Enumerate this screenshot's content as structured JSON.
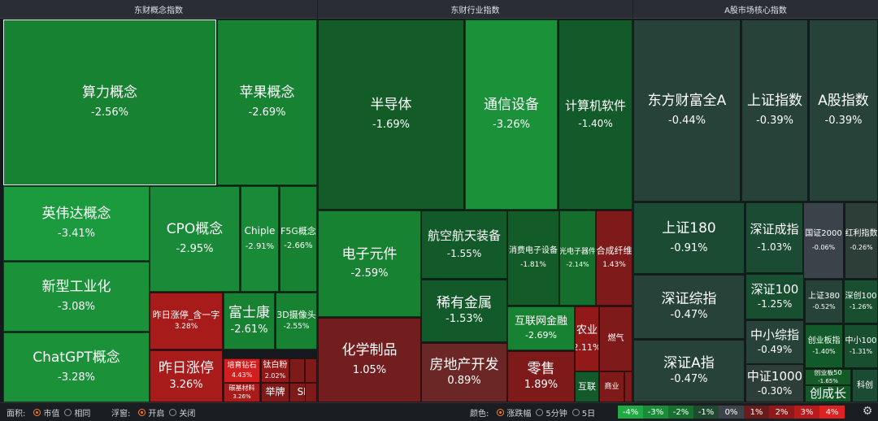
{
  "panels": [
    {
      "title": "东财概念指数",
      "id": "p1"
    },
    {
      "title": "东财行业指数",
      "id": "p2"
    },
    {
      "title": "A股市场核心指数",
      "id": "p3"
    }
  ],
  "chart_data": {
    "type": "heatmap",
    "subtype": "treemap",
    "groups": [
      {
        "title": "东财概念指数",
        "items": [
          {
            "name": "算力概念",
            "change": "-2.56%",
            "value": -2.56
          },
          {
            "name": "苹果概念",
            "change": "-2.69%",
            "value": -2.69
          },
          {
            "name": "英伟达概念",
            "change": "-3.41%",
            "value": -3.41
          },
          {
            "name": "新型工业化",
            "change": "-3.08%",
            "value": -3.08
          },
          {
            "name": "ChatGPT概念",
            "change": "-3.28%",
            "value": -3.28
          },
          {
            "name": "CPO概念",
            "change": "-2.95%",
            "value": -2.95
          },
          {
            "name": "Chiple",
            "change": "-2.91%",
            "value": -2.91
          },
          {
            "name": "F5G概念",
            "change": "-2.66%",
            "value": -2.66
          },
          {
            "name": "昨日涨停_含一字",
            "change": "3.28%",
            "value": 3.28
          },
          {
            "name": "昨日涨停",
            "change": "3.26%",
            "value": 3.26
          },
          {
            "name": "富士康",
            "change": "-2.61%",
            "value": -2.61
          },
          {
            "name": "3D摄像头",
            "change": "-2.55%",
            "value": -2.55
          },
          {
            "name": "培育钻石",
            "change": "4.43%",
            "value": 4.43
          },
          {
            "name": "钛白粉",
            "change": "2.02%",
            "value": 2.02
          },
          {
            "name": "碳基材料",
            "change": "3.26%",
            "value": 3.26
          },
          {
            "name": "举牌",
            "change": "",
            "value": 1.5
          },
          {
            "name": "SP",
            "change": "",
            "value": 1.5
          },
          {
            "name": "",
            "change": "",
            "value": 1.6
          },
          {
            "name": "",
            "change": "",
            "value": 1.8
          },
          {
            "name": "",
            "change": "",
            "value": 1.8
          }
        ]
      },
      {
        "title": "东财行业指数",
        "items": [
          {
            "name": "半导体",
            "change": "-1.69%",
            "value": -1.69
          },
          {
            "name": "通信设备",
            "change": "-3.26%",
            "value": -3.26
          },
          {
            "name": "计算机软件",
            "change": "-1.40%",
            "value": -1.4
          },
          {
            "name": "电子元件",
            "change": "-2.59%",
            "value": -2.59
          },
          {
            "name": "航空航天装备",
            "change": "-1.55%",
            "value": -1.55
          },
          {
            "name": "消费电子设备",
            "change": "-1.81%",
            "value": -1.81
          },
          {
            "name": "光电子器件",
            "change": "-2.14%",
            "value": -2.14
          },
          {
            "name": "合成纤维",
            "change": "1.43%",
            "value": 1.43
          },
          {
            "name": "稀有金属",
            "change": "-1.53%",
            "value": -1.53
          },
          {
            "name": "化学制品",
            "change": "1.05%",
            "value": 1.05
          },
          {
            "name": "互联网金融",
            "change": "-2.69%",
            "value": -2.69
          },
          {
            "name": "农业",
            "change": "2.11%",
            "value": 2.11
          },
          {
            "name": "燃气",
            "change": "",
            "value": 1.6
          },
          {
            "name": "房地产开发",
            "change": "0.89%",
            "value": 0.89
          },
          {
            "name": "零售",
            "change": "1.89%",
            "value": 1.89
          },
          {
            "name": "互联",
            "change": "",
            "value": -1.5
          },
          {
            "name": "商业",
            "change": "",
            "value": 1.6
          },
          {
            "name": "",
            "change": "",
            "value": 1.8
          }
        ]
      },
      {
        "title": "A股市场核心指数",
        "items": [
          {
            "name": "东方财富全A",
            "change": "-0.44%",
            "value": -0.44
          },
          {
            "name": "上证指数",
            "change": "-0.39%",
            "value": -0.39
          },
          {
            "name": "A股指数",
            "change": "-0.39%",
            "value": -0.39
          },
          {
            "name": "上证180",
            "change": "-0.91%",
            "value": -0.91
          },
          {
            "name": "深证成指",
            "change": "-1.03%",
            "value": -1.03
          },
          {
            "name": "国证2000",
            "change": "-0.06%",
            "value": -0.06
          },
          {
            "name": "红利指数",
            "change": "-0.26%",
            "value": -0.26
          },
          {
            "name": "深证综指",
            "change": "-0.47%",
            "value": -0.47
          },
          {
            "name": "深证100",
            "change": "-1.25%",
            "value": -1.25
          },
          {
            "name": "上证380",
            "change": "-0.52%",
            "value": -0.52
          },
          {
            "name": "深创100",
            "change": "-1.26%",
            "value": -1.26
          },
          {
            "name": "中小综指",
            "change": "-0.49%",
            "value": -0.49
          },
          {
            "name": "创业板指",
            "change": "-1.40%",
            "value": -1.4
          },
          {
            "name": "中小100",
            "change": "-1.31%",
            "value": -1.31
          },
          {
            "name": "深证A指",
            "change": "-0.47%",
            "value": -0.47
          },
          {
            "name": "中证1000",
            "change": "-0.30%",
            "value": -0.3
          },
          {
            "name": "创业板50",
            "change": "-1.65%",
            "value": -1.65
          },
          {
            "name": "创成长",
            "change": "",
            "value": -1.5
          },
          {
            "name": "科创",
            "change": "",
            "value": -1.0
          }
        ]
      }
    ]
  },
  "footer": {
    "area_label": "面积:",
    "area_options": [
      "市值",
      "相同"
    ],
    "float_label": "浮窗:",
    "float_options": [
      "开启",
      "关闭"
    ],
    "color_label": "颜色:",
    "color_options": [
      "涨跌幅",
      "5分钟",
      "5日"
    ],
    "scale": [
      {
        "label": "-4%",
        "color": "#1faa42"
      },
      {
        "label": "-3%",
        "color": "#1a8c38"
      },
      {
        "label": "-2%",
        "color": "#17702f"
      },
      {
        "label": "-1%",
        "color": "#1f4a30"
      },
      {
        "label": "0%",
        "color": "#3d434b"
      },
      {
        "label": "1%",
        "color": "#6a1c1c"
      },
      {
        "label": "2%",
        "color": "#901a1a"
      },
      {
        "label": "3%",
        "color": "#b81b1b"
      },
      {
        "label": "4%",
        "color": "#de2222"
      }
    ],
    "settings_icon": "gear-icon"
  }
}
